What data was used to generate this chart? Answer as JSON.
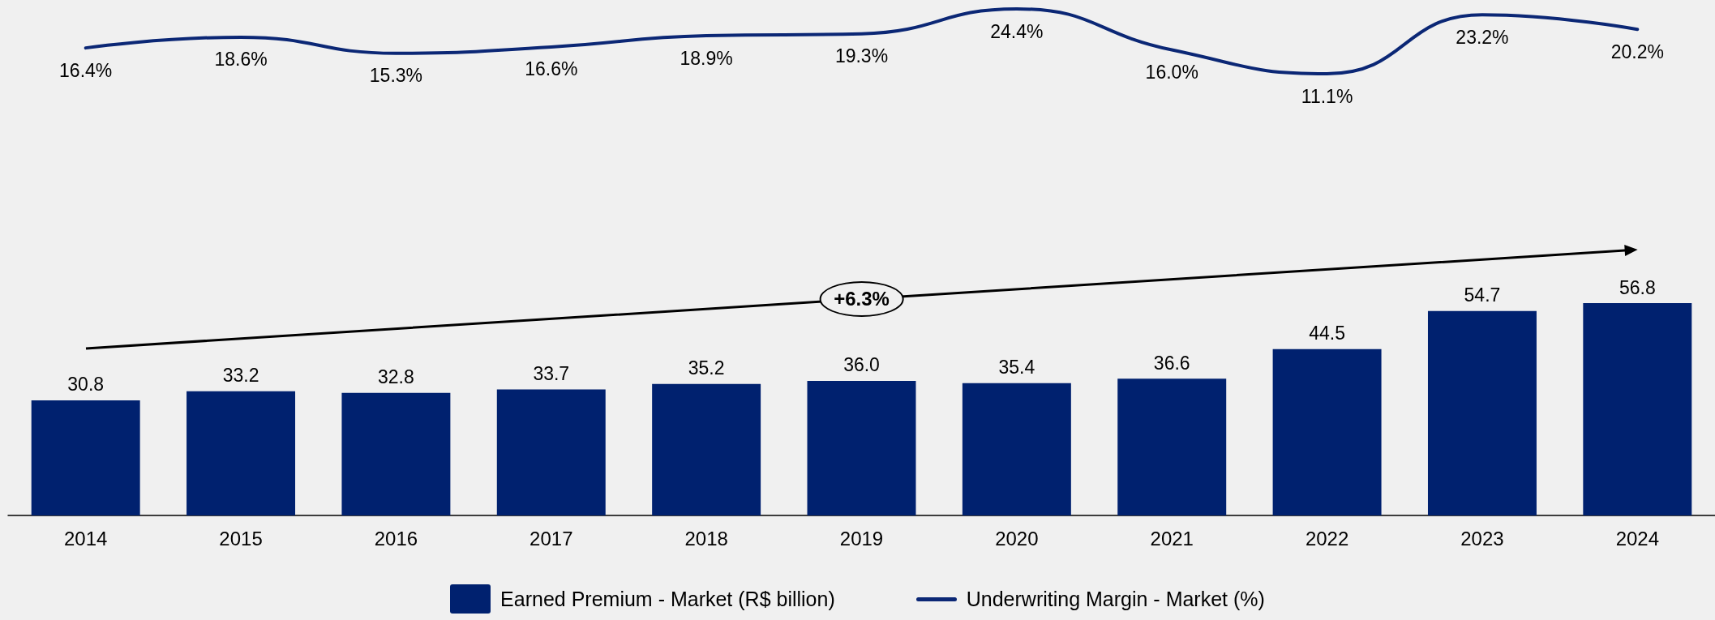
{
  "chart_data": [
    {
      "type": "line",
      "categories": [
        "2014",
        "2015",
        "2016",
        "2017",
        "2018",
        "2019",
        "2020",
        "2021",
        "2022",
        "2023",
        "2024"
      ],
      "tick_labels": false,
      "series": [
        {
          "name": "Underwriting Margin - Market (%)",
          "color": "#0b2775",
          "values": [
            16.4,
            18.6,
            15.3,
            16.6,
            18.9,
            19.3,
            24.4,
            16.0,
            11.1,
            23.2,
            20.2
          ],
          "value_labels": [
            "16.4%",
            "18.6%",
            "15.3%",
            "16.6%",
            "18.9%",
            "19.3%",
            "24.4%",
            "16.0%",
            "11.1%",
            "23.2%",
            "20.2%"
          ]
        }
      ],
      "legend": "bottom",
      "marker": "none",
      "line_style": "solid"
    },
    {
      "type": "bar",
      "categories": [
        "2014",
        "2015",
        "2016",
        "2017",
        "2018",
        "2019",
        "2020",
        "2021",
        "2022",
        "2023",
        "2024"
      ],
      "series": [
        {
          "name": "Earned Premium - Market (R$ billion)",
          "color": "#00216f",
          "values": [
            30.8,
            33.2,
            32.8,
            33.7,
            35.2,
            36.0,
            35.4,
            36.6,
            44.5,
            54.7,
            56.8
          ],
          "value_labels": [
            "30.8",
            "33.2",
            "32.8",
            "33.7",
            "35.2",
            "36.0",
            "35.4",
            "36.6",
            "44.5",
            "54.7",
            "56.8"
          ]
        }
      ],
      "legend": "bottom",
      "annotations": [
        "+6.3%"
      ]
    }
  ]
}
